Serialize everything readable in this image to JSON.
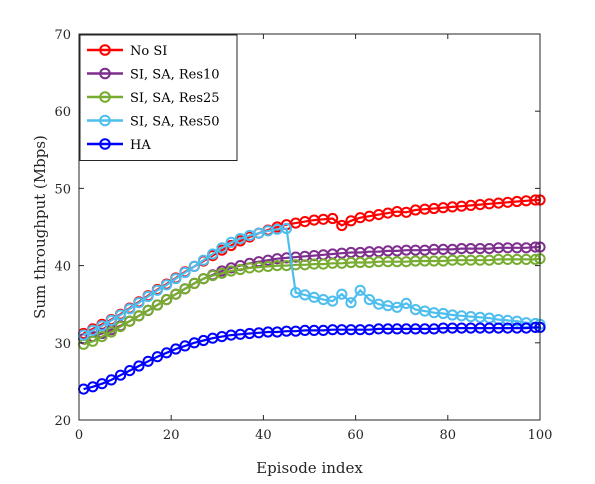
{
  "chart_data": {
    "type": "line",
    "title": "",
    "xlabel": "Episode index",
    "ylabel": "Sum throughput (Mbps)",
    "xlim": [
      0,
      100
    ],
    "ylim": [
      20,
      70
    ],
    "x_ticks": [
      0,
      20,
      40,
      60,
      80,
      100
    ],
    "y_ticks": [
      20,
      30,
      40,
      50,
      60,
      70
    ],
    "grid": false,
    "legend_position": "top-left",
    "marker": "circle",
    "x": [
      1,
      3,
      5,
      7,
      9,
      11,
      13,
      15,
      17,
      19,
      21,
      23,
      25,
      27,
      29,
      31,
      33,
      35,
      37,
      39,
      41,
      43,
      45,
      47,
      49,
      51,
      53,
      55,
      57,
      59,
      61,
      63,
      65,
      67,
      69,
      71,
      73,
      75,
      77,
      79,
      81,
      83,
      85,
      87,
      89,
      91,
      93,
      95,
      97,
      99,
      100
    ],
    "series": [
      {
        "name": "No SI",
        "color": "#ff0000",
        "values": [
          31.2,
          31.8,
          32.4,
          33.0,
          33.7,
          34.5,
          35.3,
          36.1,
          36.9,
          37.6,
          38.4,
          39.2,
          39.9,
          40.6,
          41.3,
          42.0,
          42.6,
          43.2,
          43.7,
          44.2,
          44.6,
          45.0,
          45.3,
          45.5,
          45.7,
          45.9,
          46.0,
          46.1,
          45.2,
          45.8,
          46.2,
          46.4,
          46.6,
          46.8,
          47.0,
          46.9,
          47.2,
          47.3,
          47.4,
          47.5,
          47.6,
          47.7,
          47.8,
          47.9,
          48.0,
          48.1,
          48.2,
          48.3,
          48.4,
          48.5,
          48.5
        ]
      },
      {
        "name": "SI, SA, Res10",
        "color": "#7e2f8e",
        "values": [
          30.5,
          30.8,
          31.2,
          31.7,
          32.2,
          32.8,
          33.5,
          34.2,
          34.9,
          35.6,
          36.3,
          37.0,
          37.7,
          38.3,
          38.8,
          39.3,
          39.7,
          40.0,
          40.3,
          40.5,
          40.7,
          40.9,
          41.0,
          41.1,
          41.2,
          41.3,
          41.4,
          41.5,
          41.6,
          41.7,
          41.7,
          41.8,
          41.8,
          41.9,
          41.9,
          42.0,
          42.0,
          42.0,
          42.1,
          42.1,
          42.1,
          42.2,
          42.2,
          42.2,
          42.2,
          42.3,
          42.3,
          42.3,
          42.3,
          42.4,
          42.4
        ]
      },
      {
        "name": "SI, SA, Res25",
        "color": "#77ac30",
        "values": [
          29.8,
          30.2,
          30.8,
          31.4,
          32.1,
          32.8,
          33.5,
          34.2,
          34.9,
          35.6,
          36.3,
          37.0,
          37.7,
          38.3,
          38.7,
          39.0,
          39.3,
          39.5,
          39.7,
          39.8,
          39.9,
          40.0,
          40.0,
          40.1,
          40.1,
          40.2,
          40.2,
          40.3,
          40.3,
          40.4,
          40.4,
          40.4,
          40.5,
          40.5,
          40.5,
          40.5,
          40.6,
          40.6,
          40.6,
          40.6,
          40.7,
          40.7,
          40.7,
          40.7,
          40.7,
          40.8,
          40.8,
          40.8,
          40.8,
          40.8,
          40.9
        ]
      },
      {
        "name": "SI, SA, Res50",
        "color": "#4dbeee",
        "values": [
          31.0,
          31.6,
          32.2,
          32.9,
          33.6,
          34.4,
          35.2,
          36.0,
          36.8,
          37.5,
          38.3,
          39.1,
          39.9,
          40.7,
          41.5,
          42.3,
          43.0,
          43.5,
          43.9,
          44.2,
          44.5,
          44.7,
          44.8,
          36.5,
          36.2,
          35.9,
          35.6,
          35.4,
          36.3,
          35.2,
          36.8,
          35.6,
          35.0,
          34.8,
          34.6,
          35.1,
          34.3,
          34.1,
          33.9,
          33.8,
          33.6,
          33.5,
          33.4,
          33.3,
          33.2,
          33.0,
          32.9,
          32.8,
          32.6,
          32.5,
          32.4
        ]
      },
      {
        "name": "HA",
        "color": "#0000ff",
        "values": [
          24.0,
          24.3,
          24.7,
          25.2,
          25.8,
          26.4,
          27.0,
          27.6,
          28.2,
          28.7,
          29.2,
          29.6,
          30.0,
          30.3,
          30.6,
          30.8,
          31.0,
          31.1,
          31.2,
          31.3,
          31.4,
          31.4,
          31.5,
          31.5,
          31.6,
          31.6,
          31.6,
          31.7,
          31.7,
          31.7,
          31.7,
          31.7,
          31.8,
          31.8,
          31.8,
          31.8,
          31.8,
          31.8,
          31.8,
          31.9,
          31.9,
          31.9,
          31.9,
          31.9,
          31.9,
          31.9,
          31.9,
          31.9,
          31.9,
          32.0,
          32.0
        ]
      }
    ]
  }
}
